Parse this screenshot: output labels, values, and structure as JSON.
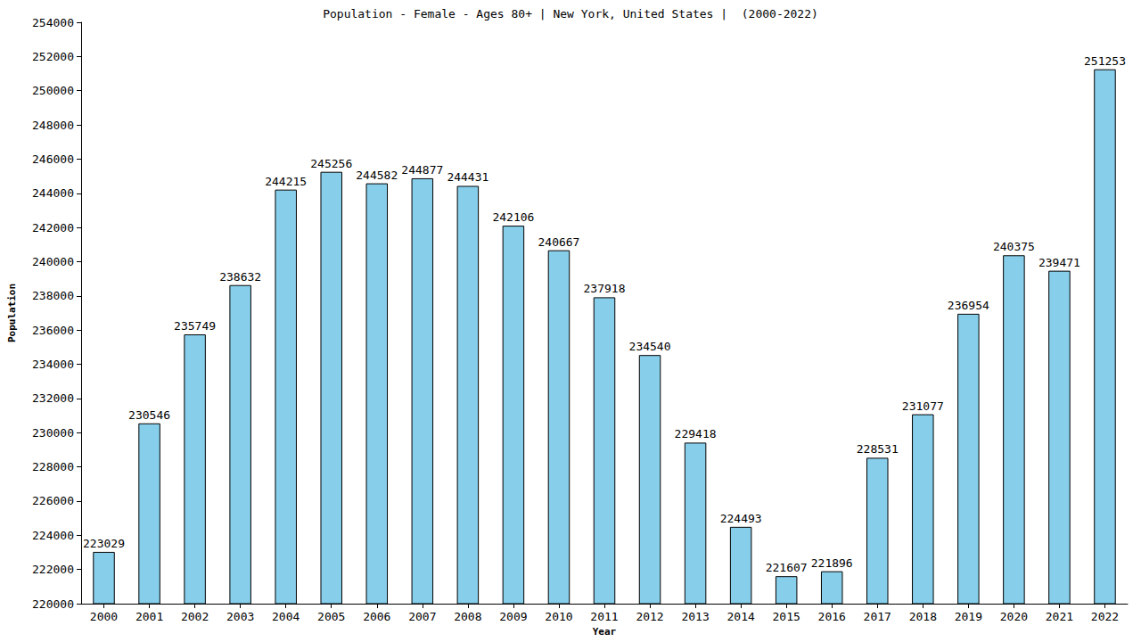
{
  "chart_data": {
    "type": "bar",
    "title": "Population - Female - Ages 80+ | New York, United States |  (2000-2022)",
    "x_label": "Year",
    "y_label": "Population",
    "categories": [
      "2000",
      "2001",
      "2002",
      "2003",
      "2004",
      "2005",
      "2006",
      "2007",
      "2008",
      "2009",
      "2010",
      "2011",
      "2012",
      "2013",
      "2014",
      "2015",
      "2016",
      "2017",
      "2018",
      "2019",
      "2020",
      "2021",
      "2022"
    ],
    "values": [
      223029,
      230546,
      235749,
      238632,
      244215,
      245256,
      244582,
      244877,
      244431,
      242106,
      240667,
      237918,
      234540,
      229418,
      224493,
      221607,
      221896,
      228531,
      231077,
      236954,
      240375,
      239471,
      251253
    ],
    "color": "#87ceeb",
    "ylim": [
      220000,
      254000
    ],
    "yticks": [
      220000,
      222000,
      224000,
      226000,
      228000,
      230000,
      232000,
      234000,
      236000,
      238000,
      240000,
      242000,
      244000,
      246000,
      248000,
      250000,
      252000,
      254000
    ],
    "grid": false,
    "data_labels": true
  }
}
